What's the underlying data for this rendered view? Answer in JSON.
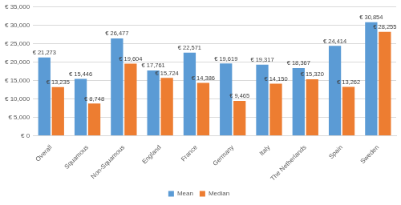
{
  "chart_data": {
    "type": "bar",
    "categories": [
      "Overall",
      "Squamous",
      "Non-Squamous",
      "England",
      "France",
      "Germany",
      "Italy",
      "The Netherlands",
      "Spain",
      "Sweden"
    ],
    "series": [
      {
        "name": "Mean",
        "color": "#5b9bd5",
        "values": [
          21273,
          15446,
          26477,
          17761,
          22571,
          19619,
          19317,
          18367,
          24414,
          30854
        ],
        "value_labels": [
          "€ 21,273",
          "€ 15,446",
          "€ 26,477",
          "€ 17,761",
          "€ 22,571",
          "€ 19,619",
          "€ 19,317",
          "€ 18,367",
          "€ 24,414",
          "€ 30,854"
        ]
      },
      {
        "name": "Median",
        "color": "#ed7d31",
        "values": [
          13235,
          8748,
          19604,
          15724,
          14386,
          9465,
          14150,
          15320,
          13262,
          28255
        ],
        "value_labels": [
          "€ 13,235",
          "€ 8,748",
          "€ 19,604",
          "€ 15,724",
          "€ 14,386",
          "€ 9,465",
          "€ 14,150",
          "€ 15,320",
          "€ 13,262",
          "€ 28,255"
        ]
      }
    ],
    "ylim": [
      0,
      35000
    ],
    "yticks": [
      {
        "value": 0,
        "label": "€ 0"
      },
      {
        "value": 5000,
        "label": "€ 5,000"
      },
      {
        "value": 10000,
        "label": "€ 10,000"
      },
      {
        "value": 15000,
        "label": "€ 15,000"
      },
      {
        "value": 20000,
        "label": "€ 20,000"
      },
      {
        "value": 25000,
        "label": "€ 25,000"
      },
      {
        "value": 30000,
        "label": "€ 30,000"
      },
      {
        "value": 35000,
        "label": "€ 35,000"
      }
    ],
    "grid": true,
    "legend": "bottom",
    "data_labels": true
  }
}
